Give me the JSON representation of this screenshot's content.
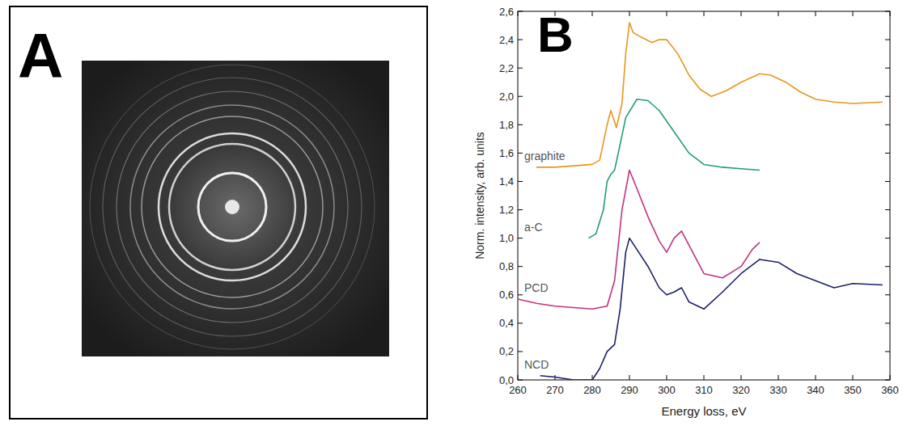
{
  "panel_a": {
    "panel_label": "A"
  },
  "chart_data": {
    "type": "line",
    "panel_label": "B",
    "x_label": "Energy loss, eV",
    "y_label": "Norm. intensity, arb. units",
    "xlim": [
      260,
      360
    ],
    "xticks": [
      260,
      270,
      280,
      290,
      300,
      310,
      320,
      330,
      340,
      350,
      360
    ],
    "ylim": [
      0,
      2.6
    ],
    "yticks": [
      {
        "value": 0,
        "label": "0,0"
      },
      {
        "value": 0.2,
        "label": "0,2"
      },
      {
        "value": 0.4,
        "label": "0,4"
      },
      {
        "value": 0.6,
        "label": "0,6"
      },
      {
        "value": 0.8,
        "label": "0,8"
      },
      {
        "value": 1.0,
        "label": "1,0"
      },
      {
        "value": 1.2,
        "label": "1,2"
      },
      {
        "value": 1.4,
        "label": "1,4"
      },
      {
        "value": 1.6,
        "label": "1,6"
      },
      {
        "value": 1.8,
        "label": "1,8"
      },
      {
        "value": 2.0,
        "label": "2,0"
      },
      {
        "value": 2.2,
        "label": "2,2"
      },
      {
        "value": 2.4,
        "label": "2,4"
      },
      {
        "value": 2.6,
        "label": "2,6"
      }
    ],
    "grid": false,
    "series": [
      {
        "name": "graphite",
        "color": "#e8961e",
        "x": [
          265,
          270,
          275,
          280,
          282,
          284,
          285,
          286.5,
          288,
          289,
          290,
          291,
          293,
          296,
          298,
          300,
          303,
          306,
          309,
          312,
          316,
          320,
          325,
          328,
          332,
          336,
          340,
          345,
          350,
          358
        ],
        "values": [
          1.5,
          1.5,
          1.51,
          1.52,
          1.55,
          1.8,
          1.9,
          1.78,
          1.95,
          2.3,
          2.52,
          2.45,
          2.42,
          2.38,
          2.4,
          2.4,
          2.3,
          2.15,
          2.05,
          2.0,
          2.04,
          2.1,
          2.16,
          2.15,
          2.1,
          2.03,
          1.98,
          1.96,
          1.95,
          1.96
        ]
      },
      {
        "name": "a-C",
        "color": "#1f9c7c",
        "x": [
          279,
          281,
          283,
          284,
          285,
          286,
          287,
          289,
          292,
          295,
          298,
          302,
          306,
          310,
          315,
          320,
          325
        ],
        "values": [
          1.0,
          1.03,
          1.2,
          1.4,
          1.45,
          1.48,
          1.6,
          1.85,
          1.98,
          1.97,
          1.9,
          1.75,
          1.6,
          1.52,
          1.5,
          1.49,
          1.48
        ]
      },
      {
        "name": "PCD",
        "color": "#c2317f",
        "x": [
          260,
          265,
          270,
          275,
          280,
          284,
          286,
          288,
          290,
          292,
          295,
          298,
          300,
          302,
          304,
          306,
          310,
          315,
          320,
          323,
          325
        ],
        "values": [
          0.57,
          0.54,
          0.52,
          0.51,
          0.5,
          0.52,
          0.7,
          1.2,
          1.48,
          1.35,
          1.15,
          0.98,
          0.9,
          1.0,
          1.05,
          0.95,
          0.75,
          0.72,
          0.8,
          0.92,
          0.97
        ]
      },
      {
        "name": "NCD",
        "color": "#1c1f6b",
        "x": [
          266,
          270,
          275,
          280,
          282,
          284,
          286,
          287.5,
          289,
          290,
          292,
          295,
          298,
          300,
          302,
          304,
          306,
          310,
          315,
          320,
          325,
          330,
          335,
          340,
          345,
          350,
          358
        ],
        "values": [
          0.03,
          0.02,
          0.0,
          0.0,
          0.08,
          0.2,
          0.25,
          0.5,
          0.9,
          1.0,
          0.92,
          0.8,
          0.65,
          0.6,
          0.62,
          0.65,
          0.55,
          0.5,
          0.62,
          0.75,
          0.85,
          0.83,
          0.75,
          0.7,
          0.65,
          0.68,
          0.67
        ]
      }
    ]
  }
}
